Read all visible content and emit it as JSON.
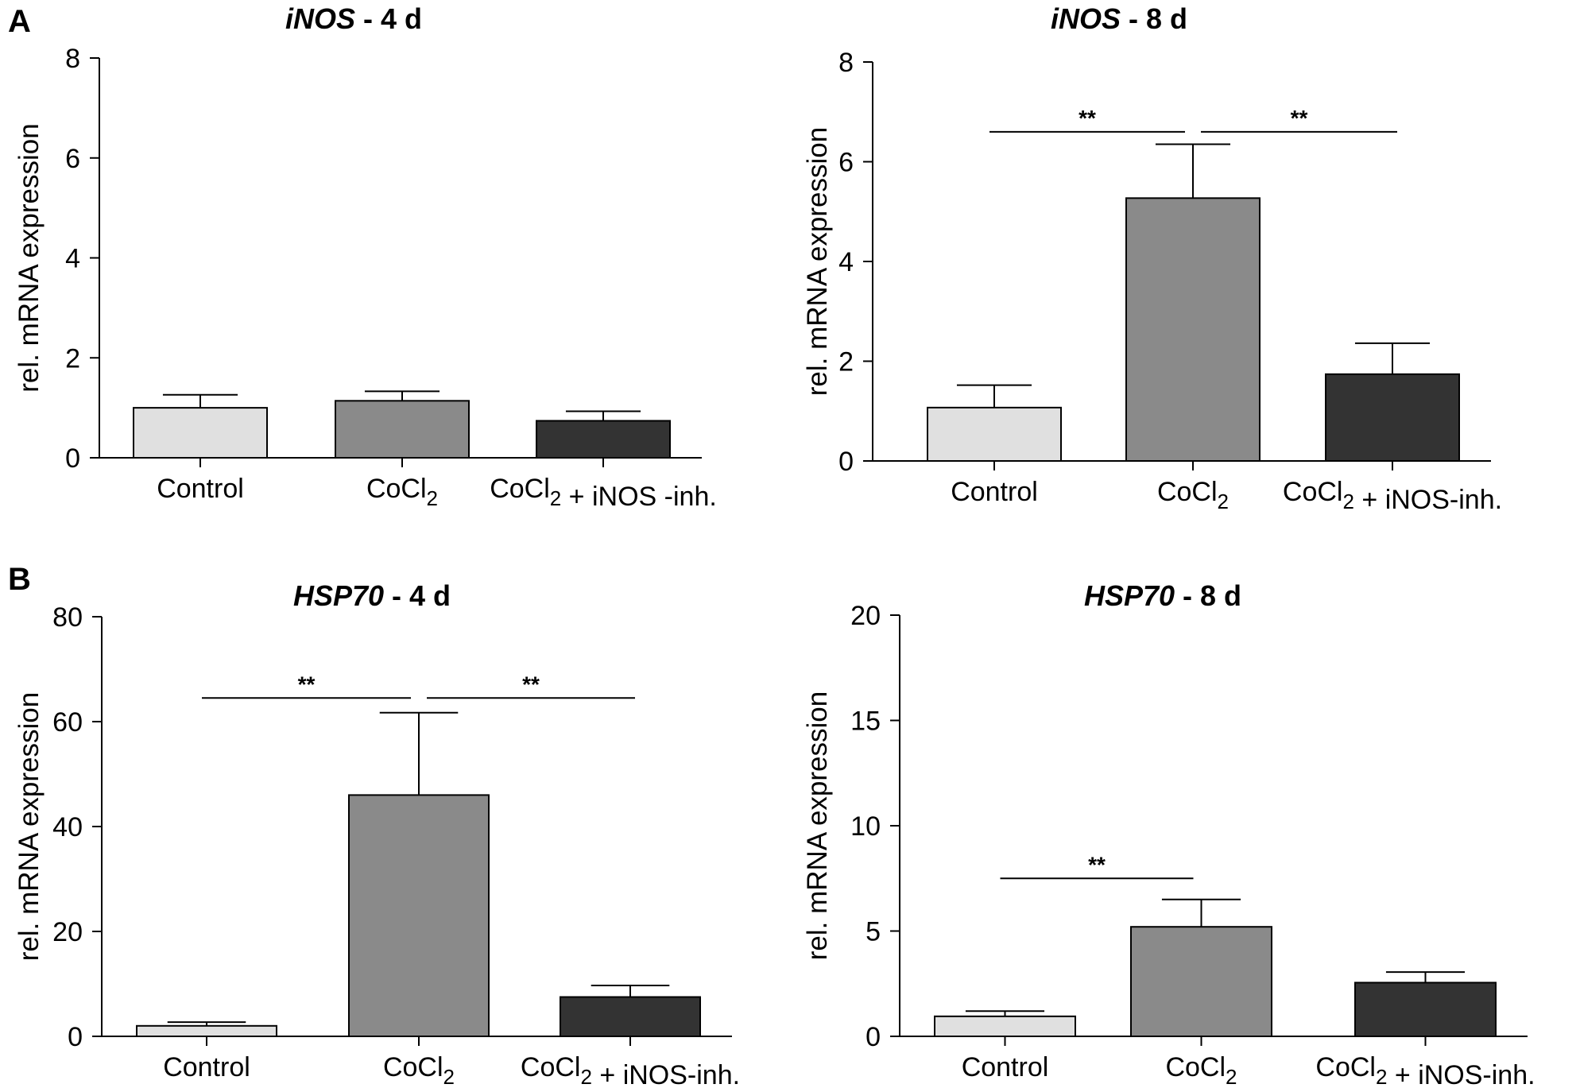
{
  "panels": [
    {
      "letter": "A"
    },
    {
      "letter": "B"
    }
  ],
  "chart_data": [
    {
      "type": "bar",
      "title_gene": "iNOS",
      "title_rest": " - 4 d",
      "ylabel": "rel. mRNA expression",
      "ylim": [
        0,
        8
      ],
      "yticks": [
        0,
        2,
        4,
        6,
        8
      ],
      "categories": [
        "Control",
        "CoCl2",
        "CoCl2 + iNOS -inh."
      ],
      "values": [
        1.0,
        1.14,
        0.74
      ],
      "errors": [
        0.26,
        0.19,
        0.19
      ],
      "colors": [
        "#e0e0e0",
        "#8a8a8a",
        "#333333"
      ],
      "significance": []
    },
    {
      "type": "bar",
      "title_gene": "iNOS",
      "title_rest": " - 8 d",
      "ylabel": "rel. mRNA expression",
      "ylim": [
        0,
        8
      ],
      "yticks": [
        0,
        2,
        4,
        6,
        8
      ],
      "categories": [
        "Control",
        "CoCl2",
        "CoCl2 + iNOS-inh."
      ],
      "values": [
        1.07,
        5.27,
        1.74
      ],
      "errors": [
        0.45,
        1.08,
        0.62
      ],
      "colors": [
        "#e0e0e0",
        "#8a8a8a",
        "#333333"
      ],
      "significance": [
        {
          "from": 0,
          "to": 1,
          "label": "**",
          "y": 6.6
        },
        {
          "from": 1,
          "to": 2,
          "label": "**",
          "y": 6.6
        }
      ]
    },
    {
      "type": "bar",
      "title_gene": "HSP70",
      "title_rest": " - 4 d",
      "ylabel": "rel. mRNA expression",
      "ylim": [
        0,
        80
      ],
      "yticks": [
        0,
        20,
        40,
        60,
        80
      ],
      "categories": [
        "Control",
        "CoCl2",
        "CoCl2 + iNOS-inh."
      ],
      "values": [
        2.0,
        46.0,
        7.5
      ],
      "errors": [
        0.7,
        15.7,
        2.2
      ],
      "colors": [
        "#e0e0e0",
        "#8a8a8a",
        "#333333"
      ],
      "significance": [
        {
          "from": 0,
          "to": 1,
          "label": "**",
          "y": 64.5
        },
        {
          "from": 1,
          "to": 2,
          "label": "**",
          "y": 64.5
        }
      ]
    },
    {
      "type": "bar",
      "title_gene": "HSP70",
      "title_rest": " - 8 d",
      "ylabel": "rel. mRNA expression",
      "ylim": [
        0,
        20
      ],
      "yticks": [
        0,
        5,
        10,
        15,
        20
      ],
      "categories": [
        "Control",
        "CoCl2",
        "CoCl2 + iNOS-inh."
      ],
      "values": [
        0.95,
        5.2,
        2.55
      ],
      "errors": [
        0.25,
        1.3,
        0.5
      ],
      "colors": [
        "#e0e0e0",
        "#8a8a8a",
        "#333333"
      ],
      "significance": [
        {
          "from": 0,
          "to": 1,
          "label": "**",
          "y": 7.5
        }
      ]
    }
  ]
}
